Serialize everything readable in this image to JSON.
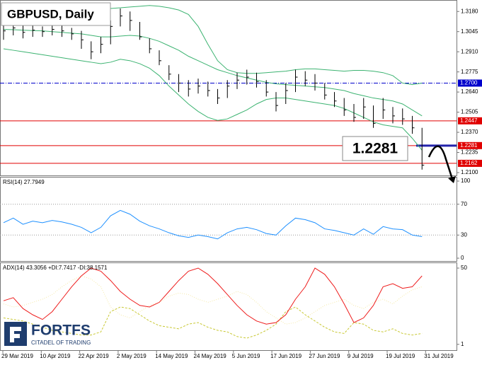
{
  "chart_data": [
    {
      "type": "ohlc",
      "title": "GBPUSD, Daily",
      "annotation": "1.2281",
      "bar_color": "#000000",
      "ylim": [
        1.2081,
        1.3257
      ],
      "yticks": [
        {
          "value": 1.318,
          "label": "1.3180"
        },
        {
          "value": 1.3045,
          "label": "1.3045"
        },
        {
          "value": 1.291,
          "label": "1.2910"
        },
        {
          "value": 1.2775,
          "label": "1.2775"
        },
        {
          "value": 1.264,
          "label": "1.2640"
        },
        {
          "value": 1.2505,
          "label": "1.2505"
        },
        {
          "value": 1.237,
          "label": "1.2370"
        },
        {
          "value": 1.2235,
          "label": "1.2235"
        },
        {
          "value": 1.21,
          "label": "1.2100"
        }
      ],
      "levels": [
        {
          "value": 1.27,
          "label": "1.2700",
          "color": "#0000cc",
          "style": "dashdot"
        },
        {
          "value": 1.2447,
          "label": "1.2447",
          "color": "#e00000",
          "style": "solid"
        },
        {
          "value": 1.2281,
          "label": "1.2281",
          "color": "#e00000",
          "style": "solid"
        },
        {
          "value": 1.2162,
          "label": "1.2162",
          "color": "#e00000",
          "style": "solid"
        }
      ],
      "high": [
        1.311,
        1.312,
        1.309,
        1.309,
        1.308,
        1.31,
        1.309,
        1.307,
        1.305,
        1.298,
        1.301,
        1.312,
        1.32,
        1.318,
        1.311,
        1.3,
        1.292,
        1.282,
        1.276,
        1.272,
        1.273,
        1.271,
        1.266,
        1.272,
        1.277,
        1.279,
        1.277,
        1.272,
        1.264,
        1.27,
        1.279,
        1.278,
        1.276,
        1.27,
        1.264,
        1.26,
        1.256,
        1.26,
        1.255,
        1.26,
        1.254,
        1.253,
        1.248,
        1.24
      ],
      "low": [
        1.299,
        1.302,
        1.3,
        1.301,
        1.301,
        1.302,
        1.301,
        1.299,
        1.293,
        1.286,
        1.29,
        1.296,
        1.308,
        1.305,
        1.299,
        1.29,
        1.282,
        1.272,
        1.264,
        1.261,
        1.263,
        1.261,
        1.256,
        1.26,
        1.266,
        1.269,
        1.267,
        1.261,
        1.251,
        1.256,
        1.264,
        1.268,
        1.265,
        1.259,
        1.254,
        1.248,
        1.244,
        1.246,
        1.24,
        1.246,
        1.243,
        1.242,
        1.236,
        1.212
      ],
      "close": [
        1.305,
        1.307,
        1.304,
        1.3055,
        1.3045,
        1.306,
        1.305,
        1.303,
        1.299,
        1.291,
        1.296,
        1.308,
        1.315,
        1.312,
        1.301,
        1.293,
        1.285,
        1.276,
        1.27,
        1.266,
        1.268,
        1.265,
        1.26,
        1.268,
        1.272,
        1.274,
        1.271,
        1.264,
        1.255,
        1.265,
        1.274,
        1.272,
        1.27,
        1.262,
        1.258,
        1.252,
        1.247,
        1.254,
        1.243,
        1.252,
        1.248,
        1.246,
        1.24,
        1.215
      ],
      "bands": {
        "color": "#3cb371",
        "upper": [
          1.321,
          1.3215,
          1.3212,
          1.3205,
          1.32,
          1.3198,
          1.3195,
          1.319,
          1.3188,
          1.319,
          1.3195,
          1.32,
          1.3205,
          1.321,
          1.3215,
          1.322,
          1.3215,
          1.3205,
          1.319,
          1.316,
          1.308,
          1.296,
          1.285,
          1.279,
          1.277,
          1.2765,
          1.2765,
          1.277,
          1.2775,
          1.278,
          1.279,
          1.2795,
          1.2795,
          1.279,
          1.2785,
          1.278,
          1.2785,
          1.2785,
          1.278,
          1.277,
          1.275,
          1.27,
          1.269,
          1.27
        ],
        "middle": [
          1.306,
          1.3058,
          1.3055,
          1.3052,
          1.305,
          1.3045,
          1.304,
          1.3035,
          1.303,
          1.302,
          1.301,
          1.301,
          1.3015,
          1.302,
          1.3015,
          1.3,
          1.298,
          1.295,
          1.292,
          1.288,
          1.285,
          1.282,
          1.279,
          1.277,
          1.275,
          1.2735,
          1.272,
          1.2705,
          1.2695,
          1.269,
          1.2685,
          1.268,
          1.2675,
          1.267,
          1.266,
          1.265,
          1.263,
          1.2615,
          1.26,
          1.259,
          1.258,
          1.256,
          1.252,
          1.248
        ],
        "lower": [
          1.293,
          1.292,
          1.291,
          1.29,
          1.289,
          1.288,
          1.287,
          1.286,
          1.285,
          1.284,
          1.283,
          1.284,
          1.286,
          1.285,
          1.283,
          1.28,
          1.275,
          1.268,
          1.262,
          1.256,
          1.251,
          1.247,
          1.245,
          1.246,
          1.249,
          1.252,
          1.256,
          1.259,
          1.26,
          1.26,
          1.259,
          1.258,
          1.257,
          1.256,
          1.255,
          1.253,
          1.25,
          1.247,
          1.244,
          1.242,
          1.241,
          1.24,
          1.233,
          1.225
        ]
      }
    },
    {
      "type": "line",
      "title": "RSI(14) 27.7949",
      "ylim": [
        0,
        100
      ],
      "yticks": [
        100,
        70,
        30,
        0
      ],
      "levels": [
        70,
        30
      ],
      "series": [
        {
          "color": "#1e90ff",
          "values": [
            46,
            52,
            44,
            48,
            46,
            49,
            47,
            44,
            40,
            33,
            40,
            55,
            62,
            57,
            48,
            42,
            38,
            33,
            29,
            27,
            30,
            28,
            25,
            33,
            38,
            40,
            37,
            32,
            30,
            42,
            52,
            50,
            46,
            38,
            36,
            33,
            30,
            38,
            31,
            41,
            38,
            37,
            30,
            28
          ]
        }
      ]
    },
    {
      "type": "line",
      "title": "ADX(14) 43.3056 +DI:7.7417 -DI:38.1571",
      "ylim": [
        0,
        50
      ],
      "yticks": [
        50,
        1
      ],
      "xlabels": [
        "29 Mar 2019",
        "10 Apr 2019",
        "22 Apr 2019",
        "2 May 2019",
        "14 May 2019",
        "24 May 2019",
        "5 Jun 2019",
        "17 Jun 2019",
        "27 Jun 2019",
        "9 Jul 2019",
        "19 Jul 2019",
        "31 Jul 2019"
      ],
      "series": [
        {
          "color": "#f5e9a8",
          "style": "dotted",
          "values": [
            27,
            25,
            26,
            28,
            30,
            33,
            38,
            42,
            45,
            43,
            38,
            25,
            20,
            18,
            22,
            26,
            28,
            32,
            34,
            33,
            30,
            28,
            30,
            32,
            35,
            33,
            28,
            22,
            18,
            14,
            15,
            18,
            22,
            26,
            28,
            30,
            26,
            24,
            28,
            30,
            27,
            32,
            36,
            38
          ]
        },
        {
          "color": "#c8c832",
          "style": "dashed",
          "values": [
            18,
            17,
            16,
            14,
            12,
            10,
            9,
            8,
            7,
            7,
            9,
            22,
            25,
            24,
            20,
            16,
            13,
            12,
            11,
            14,
            15,
            12,
            10,
            9,
            6,
            5,
            7,
            10,
            14,
            22,
            25,
            20,
            16,
            12,
            9,
            8,
            15,
            14,
            10,
            9,
            11,
            8,
            7,
            8
          ]
        },
        {
          "color": "#ee1c1c",
          "style": "solid",
          "values": [
            29,
            31,
            24,
            20,
            17,
            22,
            30,
            38,
            45,
            50,
            48,
            42,
            35,
            30,
            26,
            25,
            28,
            35,
            42,
            48,
            50,
            46,
            40,
            33,
            26,
            20,
            16,
            14,
            15,
            20,
            30,
            38,
            50,
            46,
            38,
            27,
            15,
            18,
            26,
            38,
            40,
            37,
            38,
            45
          ]
        }
      ]
    }
  ],
  "logo": {
    "name": "FORTFS",
    "tagline": "CITADEL OF TRADING"
  }
}
